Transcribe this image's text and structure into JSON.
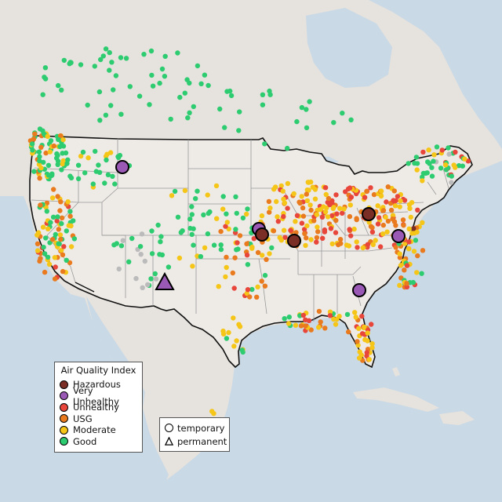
{
  "colors": {
    "water": "#c9d9e6",
    "land_other": "#e6e2dd",
    "land_us": "#eeebe7",
    "hazardous": "#7a2e26",
    "very_unhealthy": "#9b59b6",
    "unhealthy": "#e8463b",
    "usg": "#ea7a1e",
    "moderate": "#f5c518",
    "good": "#2ecc71",
    "no_data": "#bbbbbb"
  },
  "legend": {
    "title": "Air Quality Index",
    "items": [
      {
        "label": "Hazardous",
        "color": "#7a2e26"
      },
      {
        "label": "Very Unhealthy",
        "color": "#9b59b6"
      },
      {
        "label": "Unhealthy",
        "color": "#e8463b"
      },
      {
        "label": "USG",
        "color": "#ea7a1e"
      },
      {
        "label": "Moderate",
        "color": "#f5c518"
      },
      {
        "label": "Good",
        "color": "#2ecc71"
      }
    ]
  },
  "type_legend": {
    "items": [
      {
        "label": "temporary",
        "icon": "circle-icon"
      },
      {
        "label": "permanent",
        "icon": "triangle-icon"
      }
    ]
  },
  "highlighted_monitors": [
    {
      "category": "very_unhealthy",
      "shape": "circle",
      "region": "Montana"
    },
    {
      "category": "hazardous",
      "shape": "circle",
      "region": "Michigan"
    },
    {
      "category": "very_unhealthy",
      "shape": "circle",
      "region": "Iowa"
    },
    {
      "category": "hazardous",
      "shape": "circle",
      "region": "Iowa"
    },
    {
      "category": "hazardous",
      "shape": "circle",
      "region": "Illinois"
    },
    {
      "category": "very_unhealthy",
      "shape": "circle",
      "region": "Maryland"
    },
    {
      "category": "very_unhealthy",
      "shape": "circle",
      "region": "South Carolina"
    },
    {
      "category": "very_unhealthy",
      "shape": "triangle",
      "region": "New Mexico"
    }
  ]
}
